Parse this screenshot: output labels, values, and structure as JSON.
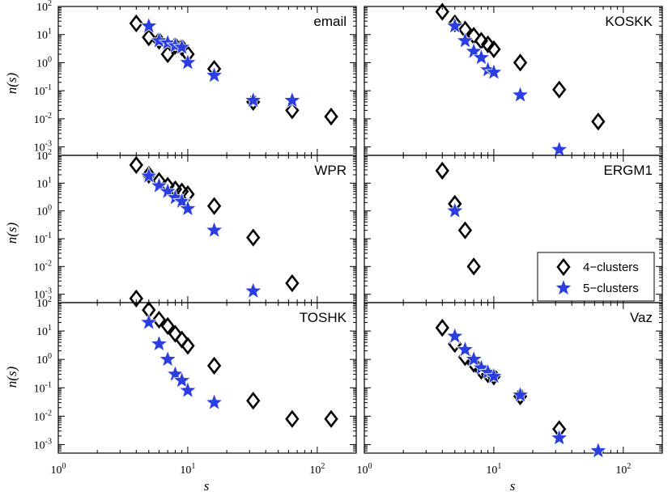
{
  "chart_data": {
    "type": "scatter",
    "xscale": "log",
    "yscale": "log",
    "xlabel": "s",
    "ylabel": "n(s)",
    "xlim": [
      1,
      200
    ],
    "ylim": [
      0.0005,
      100
    ],
    "xticks": [
      {
        "value": 1,
        "base": "10",
        "exp": "0"
      },
      {
        "value": 10,
        "base": "10",
        "exp": "1"
      },
      {
        "value": 100,
        "base": "10",
        "exp": "2"
      }
    ],
    "yticks": [
      {
        "value": 100,
        "base": "10",
        "exp": "2"
      },
      {
        "value": 10,
        "base": "10",
        "exp": "1"
      },
      {
        "value": 1,
        "base": "10",
        "exp": "0"
      },
      {
        "value": 0.1,
        "base": "10",
        "exp": "-1"
      },
      {
        "value": 0.01,
        "base": "10",
        "exp": "-2"
      },
      {
        "value": 0.001,
        "base": "10",
        "exp": "-3"
      }
    ],
    "legend": {
      "position": "panel-ERGM1-bottom-right",
      "entries": [
        {
          "label": "4−clusters",
          "marker": "diamond",
          "color": "#000000"
        },
        {
          "label": "5−clusters",
          "marker": "star",
          "color": "#2b3fe0"
        }
      ]
    },
    "panels": [
      {
        "title": "email",
        "series": [
          {
            "name": "4−clusters",
            "marker": "diamond",
            "x": [
              4,
              5,
              6,
              7,
              8,
              9,
              10,
              16,
              32,
              64,
              128
            ],
            "y": [
              25,
              8,
              6,
              2,
              4,
              3.5,
              2,
              0.6,
              0.04,
              0.02,
              0.012
            ]
          },
          {
            "name": "5−clusters",
            "marker": "star",
            "x": [
              5,
              6,
              7,
              8,
              9,
              10,
              16,
              32,
              64
            ],
            "y": [
              20,
              6,
              5,
              4,
              3.5,
              1,
              0.35,
              0.045,
              0.045
            ]
          }
        ]
      },
      {
        "title": "KOSKK",
        "series": [
          {
            "name": "4−clusters",
            "marker": "diamond",
            "x": [
              4,
              5,
              6,
              7,
              8,
              9,
              10,
              16,
              32,
              64
            ],
            "y": [
              65,
              25,
              15,
              9,
              6,
              4.5,
              3,
              1,
              0.11,
              0.008
            ]
          },
          {
            "name": "5−clusters",
            "marker": "star",
            "x": [
              5,
              6,
              7,
              8,
              9,
              10,
              16,
              32
            ],
            "y": [
              20,
              6,
              2.5,
              1.5,
              0.55,
              0.45,
              0.07,
              0.0008
            ]
          }
        ]
      },
      {
        "title": "WPR",
        "series": [
          {
            "name": "4−clusters",
            "marker": "diamond",
            "x": [
              4,
              5,
              6,
              7,
              8,
              9,
              10,
              16,
              32,
              64
            ],
            "y": [
              45,
              20,
              12,
              8,
              6,
              5,
              4,
              1.5,
              0.11,
              0.0025
            ]
          },
          {
            "name": "5−clusters",
            "marker": "star",
            "x": [
              5,
              6,
              7,
              8,
              9,
              10,
              16,
              32
            ],
            "y": [
              18,
              8,
              5,
              3,
              2.2,
              1.2,
              0.2,
              0.0013
            ]
          }
        ]
      },
      {
        "title": "ERGM1",
        "series": [
          {
            "name": "4−clusters",
            "marker": "diamond",
            "x": [
              4,
              5,
              6,
              7
            ],
            "y": [
              28,
              1.8,
              0.2,
              0.01
            ]
          },
          {
            "name": "5−clusters",
            "marker": "star",
            "x": [
              5
            ],
            "y": [
              1
            ]
          }
        ]
      },
      {
        "title": "TOSHK",
        "series": [
          {
            "name": "4−clusters",
            "marker": "diamond",
            "x": [
              4,
              5,
              6,
              7,
              8,
              9,
              10,
              16,
              32,
              64,
              128
            ],
            "y": [
              140,
              55,
              25,
              15,
              8,
              5,
              3,
              0.6,
              0.035,
              0.008,
              0.008
            ]
          },
          {
            "name": "5−clusters",
            "marker": "star",
            "x": [
              5,
              6,
              7,
              8,
              9,
              10,
              16
            ],
            "y": [
              20,
              3.5,
              1,
              0.3,
              0.18,
              0.08,
              0.03
            ]
          }
        ]
      },
      {
        "title": "Vaz",
        "series": [
          {
            "name": "4−clusters",
            "marker": "diamond",
            "x": [
              4,
              5,
              6,
              7,
              8,
              9,
              10,
              16,
              32
            ],
            "y": [
              13,
              3.5,
              1.2,
              0.7,
              0.4,
              0.3,
              0.25,
              0.05,
              0.0035
            ]
          },
          {
            "name": "5−clusters",
            "marker": "star",
            "x": [
              5,
              6,
              7,
              8,
              9,
              10,
              16,
              32,
              64
            ],
            "y": [
              6.5,
              2.2,
              1,
              0.5,
              0.35,
              0.25,
              0.055,
              0.0017,
              0.0006
            ]
          }
        ]
      }
    ]
  }
}
